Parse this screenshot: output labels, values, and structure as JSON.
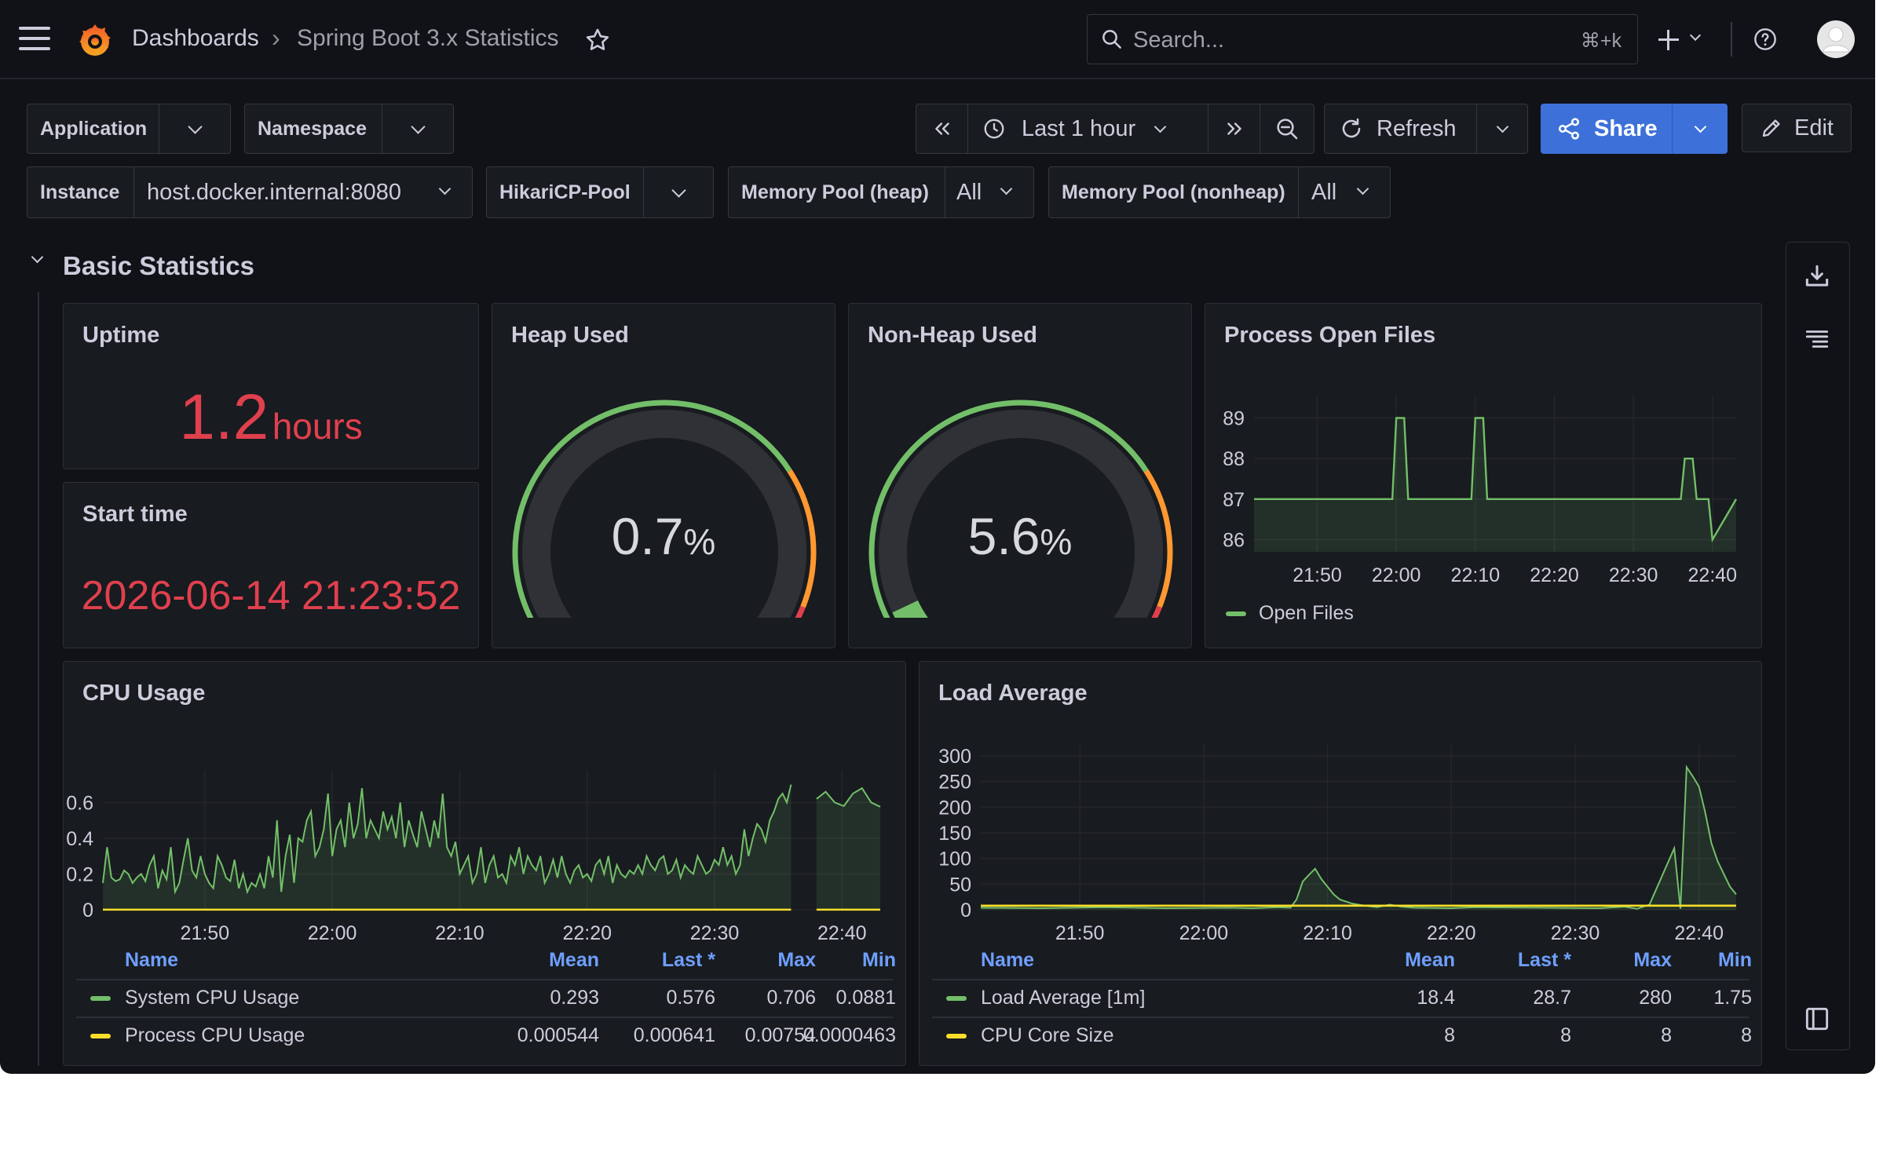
{
  "breadcrumb": {
    "root": "Dashboards",
    "separator": "›",
    "current": "Spring Boot 3.x Statistics"
  },
  "search": {
    "placeholder": "Search...",
    "shortcut": "⌘+k"
  },
  "colors": {
    "accent": "#3d71d9",
    "good": "#73bf69",
    "warn": "#ff9830",
    "bad": "#e0404e",
    "series_yellow": "#fade2a"
  },
  "variables": {
    "application": {
      "label": "Application",
      "value": ""
    },
    "namespace": {
      "label": "Namespace",
      "value": ""
    },
    "instance": {
      "label": "Instance",
      "value": "host.docker.internal:8080"
    },
    "hikari": {
      "label": "HikariCP-Pool",
      "value": ""
    },
    "heap_pool": {
      "label": "Memory Pool (heap)",
      "value": "All"
    },
    "nonheap_pool": {
      "label": "Memory Pool (nonheap)",
      "value": "All"
    }
  },
  "toolbar": {
    "time_range": "Last 1 hour",
    "refresh_label": "Refresh",
    "share_label": "Share",
    "edit_label": "Edit"
  },
  "row": {
    "title": "Basic Statistics"
  },
  "uptime": {
    "title": "Uptime",
    "value": "1.2",
    "unit": "hours"
  },
  "start_time": {
    "title": "Start time",
    "value": "2026-06-14 21:23:52"
  },
  "heap": {
    "title": "Heap Used",
    "value": "0.7",
    "unit": "%",
    "fraction": 0.007
  },
  "nonheap": {
    "title": "Non-Heap Used",
    "value": "5.6",
    "unit": "%",
    "fraction": 0.056
  },
  "open_files": {
    "title": "Process Open Files",
    "legend": "Open Files",
    "chart_data": {
      "type": "line",
      "x_ticks": [
        "21:50",
        "22:00",
        "22:10",
        "22:20",
        "22:30",
        "22:40"
      ],
      "y_ticks": [
        "89",
        "88",
        "87",
        "86"
      ],
      "ylim": [
        85.7,
        89.3
      ],
      "x_minutes": [
        0,
        17.5,
        18,
        19,
        19.5,
        27.5,
        28,
        29,
        29.5,
        54,
        54.5,
        55.5,
        56,
        57.5,
        58,
        61
      ],
      "values": [
        87,
        87,
        89,
        89,
        87,
        87,
        89,
        89,
        87,
        87,
        88,
        88,
        87,
        87,
        86,
        87
      ],
      "series": [
        {
          "name": "Open Files",
          "color": "#73bf69"
        }
      ]
    }
  },
  "cpu": {
    "title": "CPU Usage",
    "chart_data": {
      "type": "line",
      "x_ticks": [
        "21:50",
        "22:00",
        "22:10",
        "22:20",
        "22:30",
        "22:40"
      ],
      "y_ticks": [
        "0.6",
        "0.4",
        "0.2",
        "0"
      ],
      "ylim": [
        0,
        0.72
      ],
      "series": [
        {
          "name": "System CPU Usage",
          "color": "#73bf69",
          "mean": "0.293",
          "last": "0.576",
          "max": "0.706",
          "min": "0.0881",
          "values": [
            0.15,
            0.35,
            0.18,
            0.16,
            0.17,
            0.22,
            0.2,
            0.15,
            0.18,
            0.2,
            0.16,
            0.25,
            0.3,
            0.12,
            0.22,
            0.17,
            0.35,
            0.1,
            0.15,
            0.28,
            0.4,
            0.22,
            0.18,
            0.3,
            0.2,
            0.15,
            0.12,
            0.3,
            0.25,
            0.18,
            0.16,
            0.28,
            0.12,
            0.2,
            0.1,
            0.15,
            0.13,
            0.2,
            0.12,
            0.3,
            0.18,
            0.5,
            0.1,
            0.3,
            0.42,
            0.15,
            0.4,
            0.38,
            0.5,
            0.55,
            0.3,
            0.35,
            0.45,
            0.65,
            0.3,
            0.45,
            0.5,
            0.35,
            0.6,
            0.4,
            0.48,
            0.68,
            0.4,
            0.5,
            0.45,
            0.4,
            0.55,
            0.45,
            0.52,
            0.4,
            0.6,
            0.35,
            0.5,
            0.42,
            0.35,
            0.55,
            0.45,
            0.35,
            0.5,
            0.4,
            0.65,
            0.35,
            0.3,
            0.38,
            0.2,
            0.25,
            0.3,
            0.15,
            0.2,
            0.35,
            0.15,
            0.25,
            0.3,
            0.18,
            0.2,
            0.15,
            0.3,
            0.25,
            0.35,
            0.2,
            0.3,
            0.25,
            0.22,
            0.3,
            0.15,
            0.2,
            0.28,
            0.18,
            0.3,
            0.2,
            0.15,
            0.22,
            0.25,
            0.18,
            0.2,
            0.16,
            0.25,
            0.28,
            0.2,
            0.3,
            0.15,
            0.25,
            0.2,
            0.18,
            0.22,
            0.2,
            0.25,
            0.2,
            0.3,
            0.25,
            0.22,
            0.28,
            0.3,
            0.2,
            0.22,
            0.28,
            0.18,
            0.25,
            0.22,
            0.2,
            0.3,
            0.25,
            0.2,
            0.22,
            0.28,
            0.25,
            0.35,
            0.25,
            0.3,
            0.2,
            0.25,
            0.45,
            0.3,
            0.4,
            0.48,
            0.45,
            0.38,
            0.5,
            0.55,
            0.62,
            0.65,
            0.6,
            0.7,
            0.62,
            0.66,
            0.6,
            0.58,
            0.65,
            0.68,
            0.6,
            0.576
          ],
          "gap_after_index": 162
        },
        {
          "name": "Process CPU Usage",
          "color": "#fade2a",
          "mean": "0.000544",
          "last": "0.000641",
          "max": "0.00754",
          "min": "0.0000463",
          "constant": 0.0005
        }
      ]
    }
  },
  "load": {
    "title": "Load Average",
    "chart_data": {
      "type": "line",
      "x_ticks": [
        "21:50",
        "22:00",
        "22:10",
        "22:20",
        "22:30",
        "22:40"
      ],
      "y_ticks": [
        "300",
        "250",
        "200",
        "150",
        "100",
        "50",
        "0"
      ],
      "ylim": [
        0,
        300
      ],
      "series": [
        {
          "name": "Load Average [1m]",
          "color": "#73bf69",
          "mean": "18.4",
          "last": "28.7",
          "max": "280",
          "min": "1.75",
          "x_minutes": [
            0,
            5,
            10,
            15,
            20,
            22,
            24,
            25,
            25.5,
            26,
            26.5,
            27,
            27.5,
            28,
            28.5,
            29,
            30,
            30.5,
            31,
            32,
            33,
            34,
            35,
            38,
            40,
            45,
            50,
            52,
            53,
            54,
            56,
            56.5,
            57,
            57.5,
            58,
            58.5,
            59,
            59.5,
            60,
            60.5,
            61
          ],
          "values": [
            4,
            3,
            5,
            3,
            4,
            3,
            5,
            4,
            20,
            55,
            68,
            80,
            60,
            45,
            30,
            20,
            12,
            10,
            8,
            5,
            10,
            6,
            4,
            3,
            5,
            4,
            3,
            6,
            2,
            10,
            120,
            2,
            278,
            260,
            240,
            190,
            130,
            95,
            70,
            45,
            30
          ]
        },
        {
          "name": "CPU Core Size",
          "color": "#fade2a",
          "mean": "8",
          "last": "8",
          "max": "8",
          "min": "8",
          "constant": 8
        }
      ]
    }
  },
  "legend_headers": {
    "name": "Name",
    "mean": "Mean",
    "last": "Last *",
    "max": "Max",
    "min": "Min"
  }
}
